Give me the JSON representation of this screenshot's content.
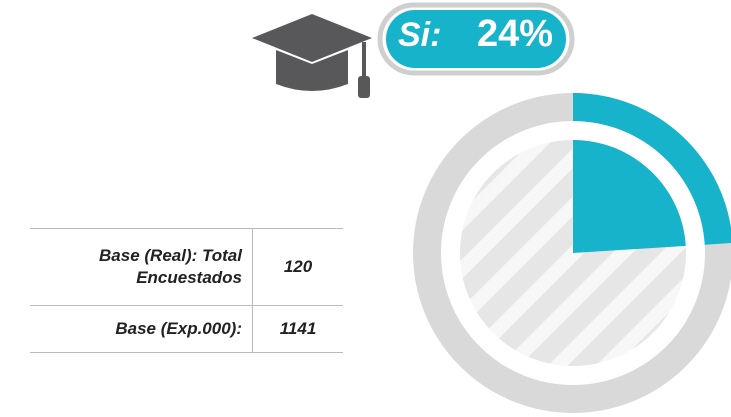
{
  "chart_data": {
    "type": "pie",
    "categories": [
      "Si:"
    ],
    "values": [
      24
    ],
    "value_labels": [
      "24%"
    ],
    "color": "#17b3cb",
    "rest_color": "#d9d9da"
  },
  "table": {
    "rows": [
      [
        "Base (Real): Total Encuestados",
        "120"
      ],
      [
        "Base (Exp.000):",
        "1141"
      ]
    ]
  }
}
